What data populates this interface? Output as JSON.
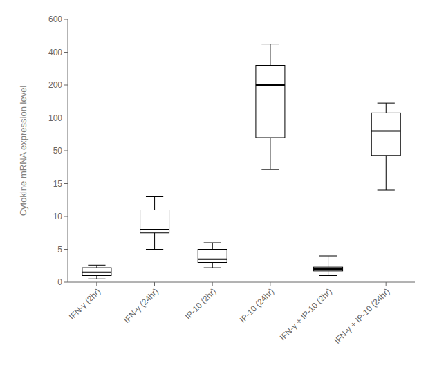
{
  "chart_data": {
    "type": "box",
    "categories": [
      "IFN-γ (2hr)",
      "IFN-γ (24hr)",
      "IP-10 (2hr)",
      "IP-10 (24hr)",
      "IFN-γ + IP-10 (2hr)",
      "IFN-γ + IP-10 (24hr)"
    ],
    "boxes": [
      {
        "whislo": 0.5,
        "q1": 1.0,
        "median": 1.5,
        "q3": 2.2,
        "whishi": 2.6
      },
      {
        "whislo": 5.0,
        "q1": 7.5,
        "median": 8.0,
        "q3": 11.0,
        "whishi": 13.0
      },
      {
        "whislo": 2.2,
        "q1": 3.0,
        "median": 3.5,
        "q3": 5.0,
        "whishi": 6.0
      },
      {
        "whislo": 30.0,
        "q1": 70.0,
        "median": 200.0,
        "q3": 320.0,
        "whishi": 450.0
      },
      {
        "whislo": 1.0,
        "q1": 1.7,
        "median": 2.0,
        "q3": 2.3,
        "whishi": 4.0
      },
      {
        "whislo": 14.0,
        "q1": 45.0,
        "median": 80.0,
        "q3": 115.0,
        "whishi": 145.0
      }
    ],
    "ylabel": "Cytokine mRNA expression level",
    "ylim": [
      0,
      600
    ],
    "yticks": [
      0,
      5,
      10,
      15,
      50,
      100,
      200,
      400,
      600
    ],
    "color": "#000000"
  }
}
